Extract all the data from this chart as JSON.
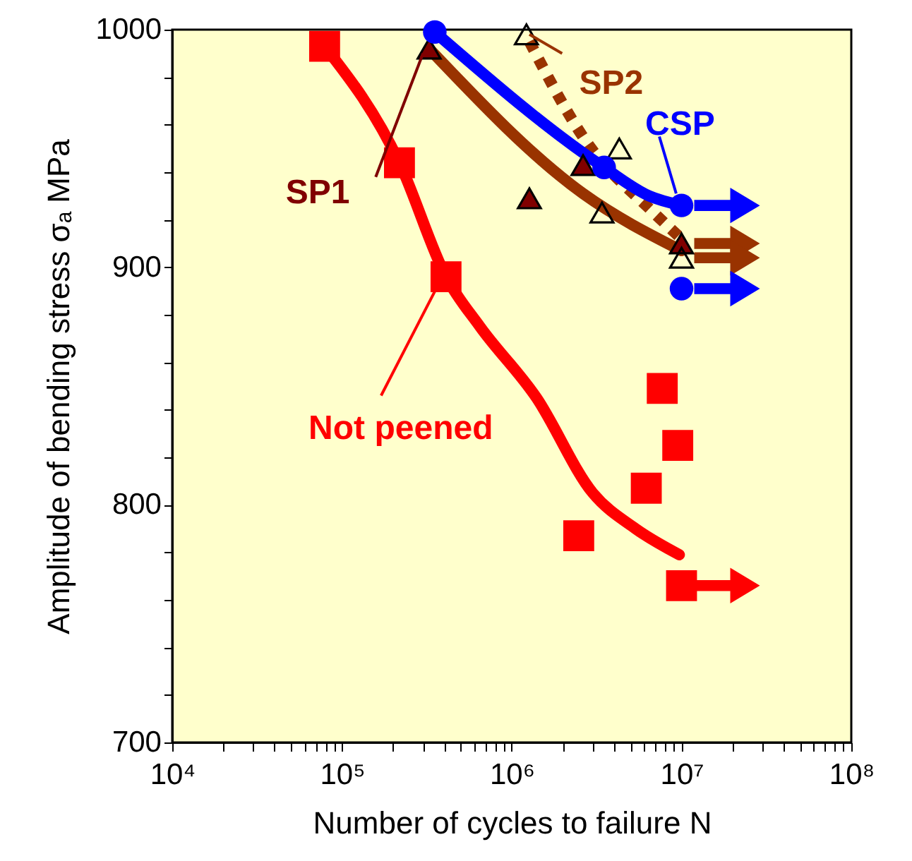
{
  "chart_data": {
    "type": "scatter",
    "xlabel": "Number of cycles to failure  N",
    "ylabel": "Amplitude of bending stress  σₐ  MPa",
    "log": "x",
    "grid": false,
    "xlim": [
      10000,
      100000000
    ],
    "ylim": [
      700,
      1000
    ],
    "xticks": [
      {
        "value": 10000,
        "label": "10⁴"
      },
      {
        "value": 20000,
        "label": null
      },
      {
        "value": 30000,
        "label": null
      },
      {
        "value": 40000,
        "label": null
      },
      {
        "value": 50000,
        "label": null
      },
      {
        "value": 60000,
        "label": null
      },
      {
        "value": 70000,
        "label": null
      },
      {
        "value": 80000,
        "label": null
      },
      {
        "value": 90000,
        "label": null
      },
      {
        "value": 100000,
        "label": "10⁵"
      },
      {
        "value": 200000,
        "label": null
      },
      {
        "value": 300000,
        "label": null
      },
      {
        "value": 400000,
        "label": null
      },
      {
        "value": 500000,
        "label": null
      },
      {
        "value": 600000,
        "label": null
      },
      {
        "value": 700000,
        "label": null
      },
      {
        "value": 800000,
        "label": null
      },
      {
        "value": 900000,
        "label": null
      },
      {
        "value": 1000000,
        "label": "10⁶"
      },
      {
        "value": 2000000,
        "label": null
      },
      {
        "value": 3000000,
        "label": null
      },
      {
        "value": 4000000,
        "label": null
      },
      {
        "value": 5000000,
        "label": null
      },
      {
        "value": 6000000,
        "label": null
      },
      {
        "value": 7000000,
        "label": null
      },
      {
        "value": 8000000,
        "label": null
      },
      {
        "value": 9000000,
        "label": null
      },
      {
        "value": 10000000,
        "label": "10⁷"
      },
      {
        "value": 20000000,
        "label": null
      },
      {
        "value": 30000000,
        "label": null
      },
      {
        "value": 40000000,
        "label": null
      },
      {
        "value": 50000000,
        "label": null
      },
      {
        "value": 60000000,
        "label": null
      },
      {
        "value": 70000000,
        "label": null
      },
      {
        "value": 80000000,
        "label": null
      },
      {
        "value": 90000000,
        "label": null
      },
      {
        "value": 100000000,
        "label": "10⁸"
      }
    ],
    "yticks": [
      700,
      {
        "value": 720,
        "label": null
      },
      {
        "value": 740,
        "label": null
      },
      {
        "value": 760,
        "label": null
      },
      {
        "value": 780,
        "label": null
      },
      800,
      {
        "value": 820,
        "label": null
      },
      {
        "value": 840,
        "label": null
      },
      {
        "value": 860,
        "label": null
      },
      {
        "value": 880,
        "label": null
      },
      900,
      {
        "value": 920,
        "label": null
      },
      {
        "value": 940,
        "label": null
      },
      {
        "value": 960,
        "label": null
      },
      {
        "value": 980,
        "label": null
      },
      1000
    ],
    "series": [
      {
        "name": "Not peened",
        "type": "scatter",
        "marker": "square",
        "color": "#ff0000",
        "x": [
          79000,
          218000,
          410000,
          2480000,
          6200000,
          7700000,
          9500000,
          10000000
        ],
        "values": [
          993,
          944,
          896,
          787,
          807,
          849,
          825,
          766
        ]
      },
      {
        "type": "line",
        "color": "#ff0000",
        "x": [
          79000,
          218000,
          410000,
          650000,
          1400000,
          3000000,
          5350000,
          9700000
        ],
        "values": [
          993,
          944,
          896,
          875,
          845,
          805,
          790,
          779
        ]
      },
      {
        "name": "SP1",
        "type": "scatter",
        "marker": "triangle",
        "color": "#800000",
        "x": [
          326000,
          1270000,
          2630000,
          10000000
        ],
        "values": [
          992,
          929,
          943,
          910
        ]
      },
      {
        "type": "line",
        "color": "#993300",
        "x": [
          326000,
          2630000,
          10000000
        ],
        "values": [
          992,
          931,
          907
        ]
      },
      {
        "type": "scatter",
        "marker": "triangle",
        "color": "#000000",
        "x": [
          1220000,
          3400000,
          4300000,
          10000000
        ],
        "values": [
          998,
          923,
          950,
          904
        ]
      },
      {
        "name": "SP2",
        "type": "line",
        "line_style": "dotted",
        "color": "#993300",
        "x": [
          1270000,
          2740000,
          6850000,
          10000000
        ],
        "values": [
          995,
          953,
          923,
          912
        ]
      },
      {
        "name": "CSP",
        "type": "scatter",
        "marker": "circle",
        "color": "#0000ff",
        "x": [
          352000,
          3500000,
          10000000,
          10000000
        ],
        "values": [
          999,
          942,
          926,
          891
        ]
      },
      {
        "type": "line",
        "color": "#0000ff",
        "x": [
          352000,
          3500000,
          6450000,
          10000000
        ],
        "values": [
          999,
          942,
          930,
          926
        ]
      }
    ]
  }
}
